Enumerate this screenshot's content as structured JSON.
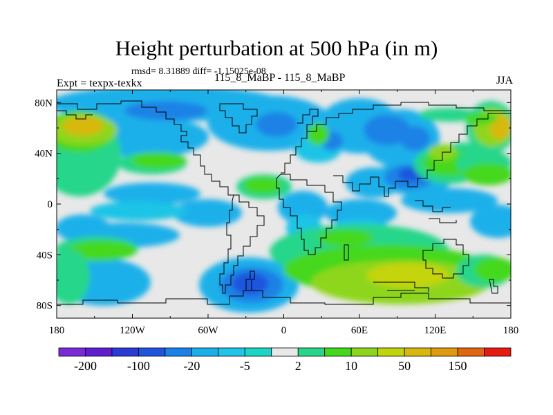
{
  "header": {
    "title": "Height perturbation at 500 hPa (in m)",
    "stats": "rmsd= 8.31889 diff= -1.15025e-08",
    "expt": "Expt = texpx-texkx",
    "case": "115_8_MaBP - 115_8_MaBP",
    "season": "JJA"
  },
  "map": {
    "lat_labels": [
      "80N",
      "40N",
      "0",
      "40S",
      "80S"
    ],
    "lat_values": [
      80,
      40,
      0,
      -40,
      -80
    ],
    "lon_labels": [
      "180",
      "120W",
      "60W",
      "0",
      "60E",
      "120E",
      "180"
    ],
    "lon_values": [
      -180,
      -120,
      -60,
      0,
      60,
      120,
      180
    ],
    "lat_range": [
      -90,
      90
    ],
    "lon_range": [
      -180,
      180
    ],
    "background_color": "#e8e8e8",
    "colors": {
      "c_m200": "#7a2ad8",
      "c_m150": "#5f1fd0",
      "c_m100": "#2a3bd6",
      "c_m50": "#1f55de",
      "c_m20": "#1a82e6",
      "c_m10": "#1bb0ea",
      "c_m5": "#1fc4e6",
      "c_m2": "#1bd6c6",
      "c_0": "#e8e8e8",
      "c_2": "#28d68a",
      "c_5": "#44d81c",
      "c_10": "#8ed61e",
      "c_20": "#c4d40c",
      "c_50": "#d8b80c",
      "c_100": "#e09a10",
      "c_150": "#e06612",
      "c_200": "#e61c10"
    }
  },
  "colorbar": {
    "labels": [
      "-200",
      "-100",
      "-20",
      "-5",
      "2",
      "10",
      "50",
      "150"
    ],
    "colors": [
      "#7a2ad8",
      "#5f1fd0",
      "#2a3bd6",
      "#1f55de",
      "#1a82e6",
      "#1bb0ea",
      "#1fc4e6",
      "#1bd6c6",
      "#e8e8e8",
      "#28d68a",
      "#44d81c",
      "#8ed61e",
      "#c4d40c",
      "#d8b80c",
      "#e09a10",
      "#e06612",
      "#e61c10"
    ]
  }
}
